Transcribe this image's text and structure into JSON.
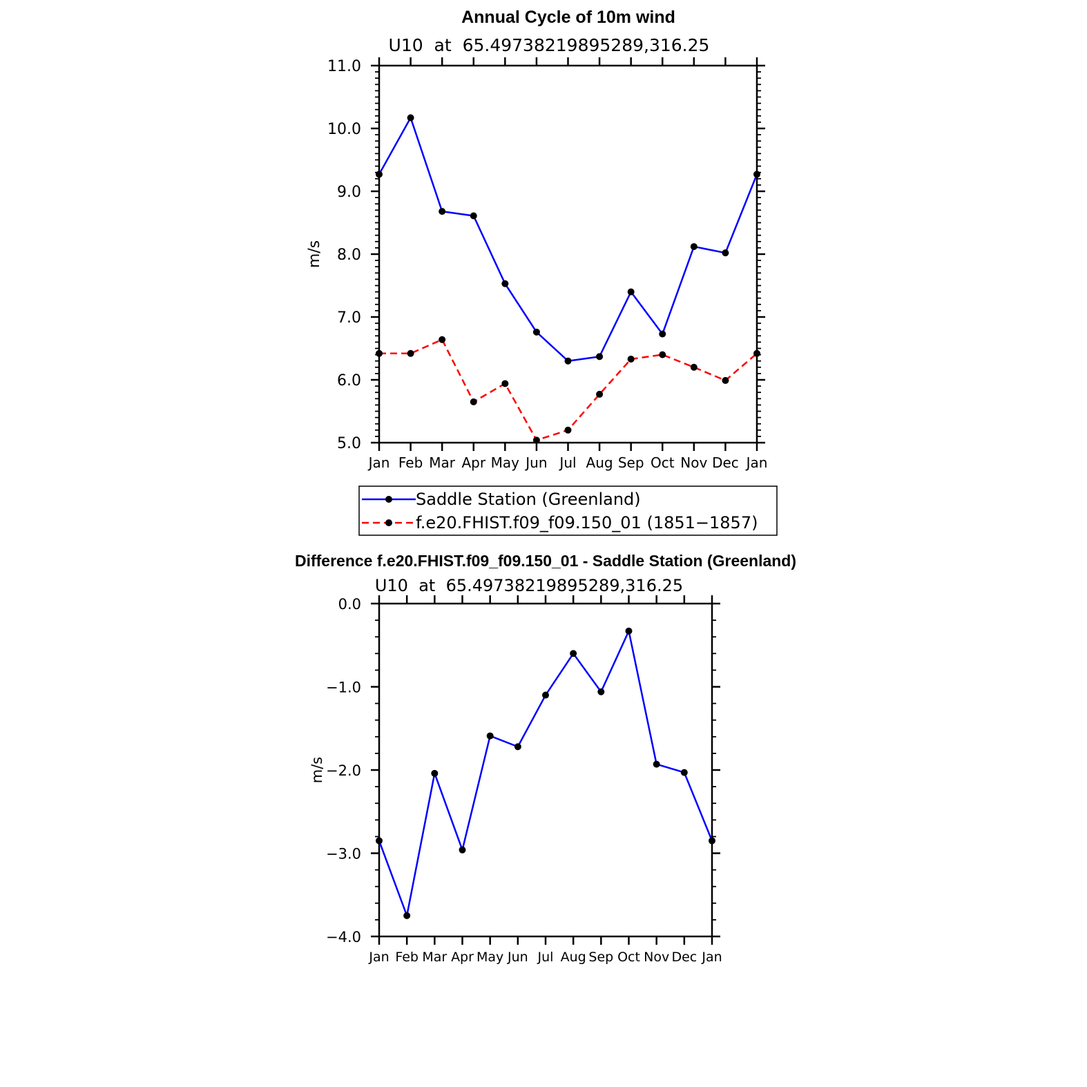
{
  "chart_data": [
    {
      "type": "line",
      "title": "Annual Cycle of 10m wind",
      "subtitle": "U10  at  65.49738219895289,316.25",
      "ylabel": "m/s",
      "xlabel": "",
      "ylim": [
        5.0,
        11.0
      ],
      "categories": [
        "Jan",
        "Feb",
        "Mar",
        "Apr",
        "May",
        "Jun",
        "Jul",
        "Aug",
        "Sep",
        "Oct",
        "Nov",
        "Dec",
        "Jan"
      ],
      "yticks": [
        "5.0",
        "6.0",
        "7.0",
        "8.0",
        "9.0",
        "10.0",
        "11.0"
      ],
      "series": [
        {
          "name": "Saddle Station (Greenland)",
          "color": "#0000ff",
          "dashed": false,
          "values": [
            9.27,
            10.17,
            8.68,
            8.61,
            7.53,
            6.76,
            6.3,
            6.37,
            7.4,
            6.73,
            8.12,
            8.02,
            9.27
          ]
        },
        {
          "name": "f.e20.FHIST.f09_f09.150_01 (1851−1857)",
          "color": "#ff0000",
          "dashed": true,
          "values": [
            6.42,
            6.42,
            6.64,
            5.65,
            5.94,
            5.04,
            5.2,
            5.77,
            6.33,
            6.4,
            6.2,
            5.99,
            6.42
          ]
        }
      ],
      "legend_position": "below"
    },
    {
      "type": "line",
      "title": "Difference f.e20.FHIST.f09_f09.150_01 - Saddle Station (Greenland)",
      "subtitle": "U10  at  65.49738219895289,316.25",
      "ylabel": "m/s",
      "xlabel": "",
      "ylim": [
        -4.0,
        0.0
      ],
      "categories": [
        "Jan",
        "Feb",
        "Mar",
        "Apr",
        "May",
        "Jun",
        "Jul",
        "Aug",
        "Sep",
        "Oct",
        "Nov",
        "Dec",
        "Jan"
      ],
      "yticks": [
        "−4.0",
        "−3.0",
        "−2.0",
        "−1.0",
        "0.0"
      ],
      "series": [
        {
          "name": "Difference",
          "color": "#0000ff",
          "dashed": false,
          "values": [
            -2.85,
            -3.75,
            -2.04,
            -2.96,
            -1.59,
            -1.72,
            -1.1,
            -0.6,
            -1.06,
            -0.33,
            -1.93,
            -2.03,
            -2.85
          ]
        }
      ]
    }
  ]
}
